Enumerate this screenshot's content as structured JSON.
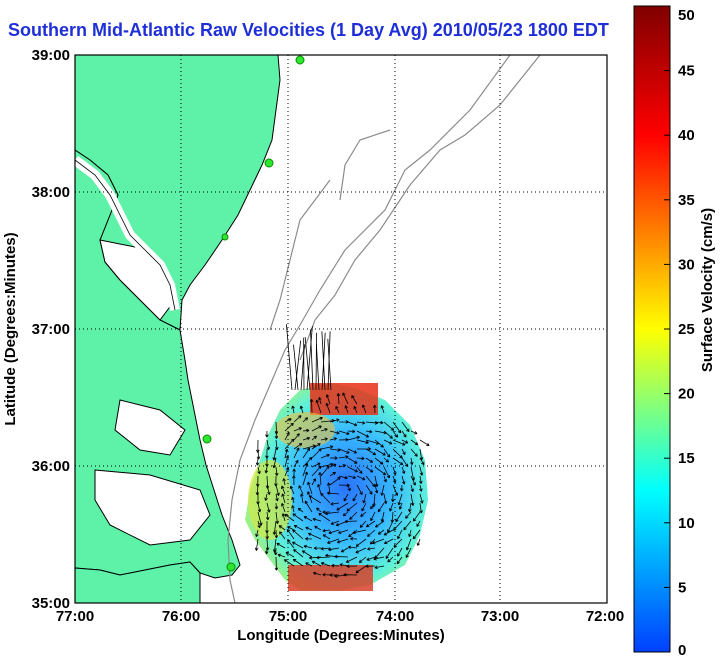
{
  "title": "Southern Mid-Atlantic Raw Velocities (1 Day Avg) 2010/05/23 1800 EDT",
  "map": {
    "x_axis_label": "Longitude (Degrees:Minutes)",
    "y_axis_label": "Latitude (Degrees:Minutes)",
    "lon_ticks": [
      "77:00",
      "76:00",
      "75:00",
      "74:00",
      "73:00",
      "72:00"
    ],
    "lat_ticks": [
      "39:00",
      "38:00",
      "37:00",
      "36:00",
      "35:00"
    ],
    "grid": "dotted",
    "land_color": "#5ef2a8",
    "coast_color": "#000000",
    "isobath_color": "#8c8c8c",
    "station_color": "#2ee62e"
  },
  "colorbar": {
    "label": "Surface Velocity (cm/s)",
    "ticks": [
      "0",
      "5",
      "10",
      "15",
      "20",
      "25",
      "30",
      "35",
      "40",
      "45",
      "50"
    ],
    "min": 0,
    "max": 50,
    "colormap": [
      "#0040ff",
      "#00ffff",
      "#ffff00",
      "#ff0000",
      "#800000"
    ]
  }
}
